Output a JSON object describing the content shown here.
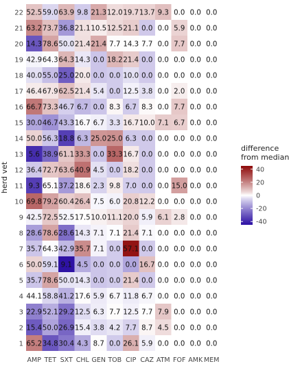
{
  "chart_data": {
    "type": "heatmap",
    "ylabel": "herd vet",
    "x_categories": [
      "AMP",
      "TET",
      "SXT",
      "CHL",
      "GEN",
      "TOB",
      "CIP",
      "CAZ",
      "ATM",
      "FOF",
      "AMK",
      "MEM"
    ],
    "y_categories": [
      "22",
      "21",
      "20",
      "19",
      "18",
      "17",
      "16",
      "15",
      "14",
      "13",
      "12",
      "11",
      "10",
      "9",
      "8",
      "7",
      "6",
      "5",
      "4",
      "3",
      "2",
      "1"
    ],
    "values": [
      [
        52.5,
        59.0,
        63.9,
        9.8,
        21.3,
        12.0,
        19.7,
        13.7,
        9.3,
        0.0,
        0.0,
        0.0
      ],
      [
        63.2,
        73.7,
        36.8,
        21.1,
        10.5,
        12.5,
        21.1,
        0.0,
        0.0,
        5.9,
        0.0,
        0.0
      ],
      [
        14.3,
        78.6,
        50.0,
        21.4,
        21.4,
        7.7,
        14.3,
        7.7,
        0.0,
        7.7,
        0.0,
        0.0
      ],
      [
        42.9,
        64.3,
        64.3,
        14.3,
        0.0,
        18.2,
        21.4,
        0.0,
        0.0,
        0.0,
        0.0,
        0.0
      ],
      [
        40.0,
        55.0,
        25.0,
        20.0,
        0.0,
        0.0,
        10.0,
        0.0,
        0.0,
        0.0,
        0.0,
        0.0
      ],
      [
        46.4,
        67.9,
        62.5,
        21.4,
        5.4,
        0.0,
        12.5,
        3.8,
        0.0,
        2.0,
        0.0,
        0.0
      ],
      [
        66.7,
        73.3,
        46.7,
        6.7,
        0.0,
        8.3,
        6.7,
        8.3,
        0.0,
        7.7,
        0.0,
        0.0
      ],
      [
        30.0,
        46.7,
        43.3,
        16.7,
        6.7,
        3.3,
        16.7,
        10.0,
        7.1,
        6.7,
        0.0,
        0.0
      ],
      [
        50.0,
        56.3,
        18.8,
        6.3,
        25.0,
        25.0,
        6.3,
        0.0,
        0.0,
        0.0,
        0.0,
        0.0
      ],
      [
        5.6,
        38.9,
        61.1,
        33.3,
        0.0,
        33.3,
        16.7,
        0.0,
        0.0,
        0.0,
        0.0,
        0.0
      ],
      [
        36.4,
        72.7,
        63.6,
        40.9,
        4.5,
        0.0,
        18.2,
        0.0,
        0.0,
        0.0,
        0.0,
        0.0
      ],
      [
        9.3,
        65.1,
        37.2,
        18.6,
        2.3,
        9.8,
        7.0,
        0.0,
        0.0,
        15.0,
        0.0,
        0.0
      ],
      [
        69.8,
        79.2,
        60.4,
        26.4,
        7.5,
        6.0,
        20.8,
        12.2,
        0.0,
        0.0,
        0.0,
        0.0
      ],
      [
        42.5,
        72.5,
        52.5,
        17.5,
        10.0,
        11.1,
        20.0,
        5.9,
        6.1,
        2.8,
        0.0,
        0.0
      ],
      [
        28.6,
        78.6,
        28.6,
        14.3,
        7.1,
        7.1,
        21.4,
        7.1,
        0.0,
        0.0,
        0.0,
        0.0
      ],
      [
        35.7,
        64.3,
        42.9,
        35.7,
        7.1,
        0.0,
        57.1,
        0.0,
        0.0,
        0.0,
        0.0,
        0.0
      ],
      [
        50.0,
        59.1,
        9.1,
        4.5,
        0.0,
        0.0,
        0.0,
        16.7,
        0.0,
        0.0,
        0.0,
        0.0
      ],
      [
        35.7,
        78.6,
        50.0,
        14.3,
        0.0,
        0.0,
        21.4,
        0.0,
        0.0,
        0.0,
        0.0,
        0.0
      ],
      [
        44.1,
        58.8,
        41.2,
        17.6,
        5.9,
        6.7,
        11.8,
        6.7,
        0.0,
        0.0,
        0.0,
        0.0
      ],
      [
        22.9,
        52.1,
        29.2,
        12.5,
        6.3,
        7.7,
        12.5,
        7.7,
        7.9,
        0.0,
        0.0,
        0.0
      ],
      [
        15.4,
        50.0,
        26.9,
        15.4,
        3.8,
        4.2,
        7.7,
        8.7,
        4.5,
        0.0,
        0.0,
        0.0
      ],
      [
        65.2,
        34.8,
        30.4,
        4.3,
        8.7,
        0.0,
        26.1,
        5.9,
        0.0,
        0.0,
        0.0,
        0.0
      ]
    ],
    "color_values": [
      [
        8.4,
        -5.6,
        10.5,
        -7.5,
        12.9,
        4.6,
        5.6,
        6.0,
        9.3,
        0.0,
        0.0,
        0.0
      ],
      [
        19.1,
        9.1,
        -16.6,
        3.8,
        2.1,
        5.1,
        7.0,
        -7.7,
        0.0,
        5.9,
        0.0,
        0.0
      ],
      [
        -29.8,
        14.0,
        -3.4,
        4.1,
        13.0,
        0.3,
        0.2,
        0.0,
        0.0,
        7.7,
        0.0,
        0.0
      ],
      [
        -1.2,
        -0.3,
        10.9,
        -3.0,
        -8.4,
        10.8,
        7.3,
        -7.7,
        0.0,
        0.0,
        0.0,
        0.0
      ],
      [
        -4.1,
        -9.6,
        -28.4,
        2.7,
        -8.4,
        -7.4,
        -4.1,
        -7.7,
        0.0,
        0.0,
        0.0,
        0.0
      ],
      [
        2.3,
        3.3,
        9.1,
        4.1,
        -3.0,
        -7.4,
        -1.6,
        -3.9,
        0.0,
        2.0,
        0.0,
        0.0
      ],
      [
        22.6,
        8.7,
        -6.7,
        -10.6,
        -8.4,
        0.9,
        -7.4,
        0.6,
        0.0,
        7.7,
        0.0,
        0.0
      ],
      [
        -14.1,
        -17.9,
        -10.1,
        -0.6,
        -1.7,
        -4.1,
        2.6,
        2.3,
        7.1,
        6.7,
        0.0,
        0.0
      ],
      [
        5.9,
        -8.3,
        -34.6,
        -11.0,
        16.6,
        17.6,
        -7.8,
        -7.7,
        0.0,
        0.0,
        0.0,
        0.0
      ],
      [
        -38.5,
        -25.7,
        7.7,
        16.0,
        -8.4,
        25.9,
        2.6,
        -7.7,
        0.0,
        0.0,
        0.0,
        0.0
      ],
      [
        -7.7,
        8.1,
        10.2,
        23.6,
        -3.9,
        -7.4,
        4.1,
        -7.7,
        0.0,
        0.0,
        0.0,
        0.0
      ],
      [
        -34.8,
        0.5,
        -16.2,
        1.3,
        -6.1,
        2.4,
        -7.1,
        -7.7,
        0.0,
        15.0,
        0.0,
        0.0
      ],
      [
        25.7,
        14.6,
        7.0,
        9.1,
        -0.9,
        -1.4,
        6.7,
        4.5,
        0.0,
        0.0,
        0.0,
        0.0
      ],
      [
        -1.6,
        7.9,
        -0.9,
        0.2,
        1.6,
        3.7,
        5.9,
        -1.8,
        6.1,
        2.8,
        0.0,
        0.0
      ],
      [
        -15.5,
        14.0,
        -24.8,
        -3.0,
        -1.3,
        -0.3,
        7.3,
        -0.6,
        0.0,
        0.0,
        0.0,
        0.0
      ],
      [
        -8.4,
        -0.3,
        -10.5,
        18.4,
        -1.3,
        -7.4,
        43.0,
        -7.7,
        0.0,
        0.0,
        0.0,
        0.0
      ],
      [
        5.9,
        -5.5,
        -44.3,
        -12.8,
        -8.4,
        -7.4,
        -14.1,
        9.0,
        0.0,
        0.0,
        0.0,
        0.0
      ],
      [
        -8.4,
        14.0,
        -3.4,
        -3.0,
        -8.4,
        -7.4,
        7.3,
        -7.7,
        0.0,
        0.0,
        0.0,
        0.0
      ],
      [
        0.0,
        -5.8,
        -12.2,
        0.3,
        -2.5,
        -0.7,
        -2.3,
        -1.0,
        0.0,
        0.0,
        0.0,
        0.0
      ],
      [
        -21.2,
        -12.5,
        -24.2,
        -4.8,
        -2.1,
        0.3,
        -1.6,
        0.0,
        7.9,
        0.0,
        0.0,
        0.0
      ],
      [
        -28.7,
        -14.6,
        -26.5,
        -1.9,
        -4.6,
        -3.2,
        -6.4,
        1.0,
        4.5,
        0.0,
        0.0,
        0.0
      ],
      [
        21.1,
        -29.8,
        -23.0,
        -13.0,
        0.3,
        -7.4,
        12.0,
        -1.8,
        0.0,
        0.0,
        0.0,
        0.0
      ]
    ],
    "legend": {
      "title_line1": "difference",
      "title_line2": "from median",
      "ticks": [
        "40",
        "20",
        "0",
        "-20",
        "-40"
      ],
      "tick_values": [
        40,
        20,
        0,
        -20,
        -40
      ],
      "range": [
        -45,
        45
      ],
      "low_color": "#2b0fa3",
      "mid_color": "#ffffff",
      "high_color": "#8e0a0a"
    },
    "grid": false,
    "legend_position": "right"
  }
}
